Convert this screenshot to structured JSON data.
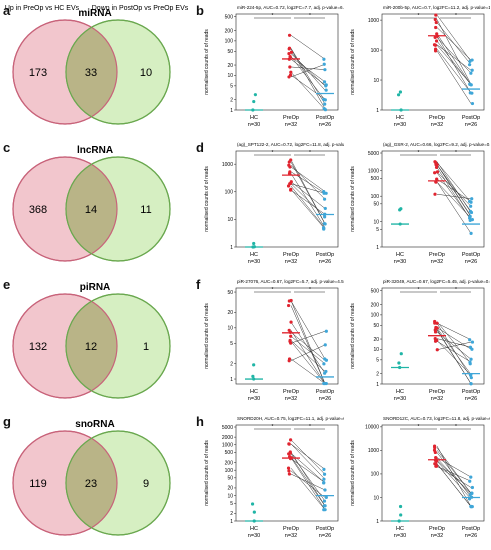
{
  "venn_left_label": "Up in PreOp vs HC EVs",
  "venn_right_label": "Down in PostOp vs PreOp EVs",
  "colors": {
    "pink": "#f2c6cd",
    "pink_stroke": "#c8637a",
    "green": "#d6efc2",
    "green_stroke": "#6aa84f",
    "overlap": "#b9b487",
    "hc": "#20b5a6",
    "preop": "#e0242f",
    "postop": "#3fa6d8",
    "line": "#333333"
  },
  "groups": {
    "hc": "HC",
    "preop": "PreOp",
    "postop": "PostOp"
  },
  "ylabel": "normalised counts of of reads",
  "rows": [
    {
      "venn_letter": "a",
      "plot_letter": "b",
      "type": "miRNA",
      "left": "173",
      "center": "33",
      "right": "10",
      "plots": [
        {
          "title": "miR-224-5p, AUC=0.72, log2FC=7.7, adj. p-value=6.4×10⁻³",
          "n": [
            "n=30",
            "n=32",
            "n=26"
          ],
          "ticks": [
            "1",
            "2",
            "5",
            "10",
            "20",
            "50",
            "100",
            "200",
            "500"
          ],
          "ylim": [
            1,
            600
          ],
          "median": [
            1,
            30,
            3
          ]
        },
        {
          "title": "miR-200b-5p, AUC=0.7, log2FC=11.2, adj. p-value=1.2×10⁻³",
          "n": [
            "n=30",
            "n=32",
            "n=26"
          ],
          "ticks": [
            "1",
            "10",
            "100",
            "1000"
          ],
          "ylim": [
            1,
            1600
          ],
          "median": [
            1,
            300,
            5
          ]
        }
      ]
    },
    {
      "venn_letter": "c",
      "plot_letter": "d",
      "type": "lncRNA",
      "left": "368",
      "center": "14",
      "right": "11",
      "plots": [
        {
          "title": "(ag)_SPT122-2, AUC=0.72, log2FC=11.8, adj. p-value=1.5×10⁻³",
          "n": [
            "n=30",
            "n=32",
            "n=26"
          ],
          "ticks": [
            "1",
            "10",
            "100",
            "1000"
          ],
          "ylim": [
            1,
            3000
          ],
          "median": [
            1,
            400,
            15
          ]
        },
        {
          "title": "(ag)_GSR-2, AUC=0.66, log2FC=9.2, adj. p-value=0.00602",
          "n": [
            "n=30",
            "n=32",
            "n=26"
          ],
          "ticks": [
            "1",
            "5",
            "10",
            "50",
            "100",
            "500",
            "1000",
            "5000"
          ],
          "ylim": [
            1,
            6000
          ],
          "median": [
            8,
            400,
            8
          ]
        }
      ]
    },
    {
      "venn_letter": "e",
      "plot_letter": "f",
      "type": "piRNA",
      "left": "132",
      "center": "12",
      "right": "1",
      "plots": [
        {
          "title": "piR-27076, AUC=0.67, log2FC=5.7, adj. p-value=4.5×10⁻³",
          "n": [
            "n=30",
            "n=32",
            "n=26"
          ],
          "ticks": [
            "1",
            "2",
            "5",
            "10",
            "20",
            "50"
          ],
          "ylim": [
            0.8,
            60
          ],
          "median": [
            1,
            8,
            1.1
          ]
        },
        {
          "title": "piR-32049, AUC=0.67, log2FC=5.45, adj. p-value=0.011",
          "n": [
            "n=30",
            "n=32",
            "n=26"
          ],
          "ticks": [
            "1",
            "2",
            "5",
            "10",
            "20",
            "50",
            "100",
            "200",
            "500"
          ],
          "ylim": [
            1,
            600
          ],
          "median": [
            3,
            25,
            2
          ]
        }
      ]
    },
    {
      "venn_letter": "g",
      "plot_letter": "h",
      "type": "snoRNA",
      "left": "119",
      "center": "23",
      "right": "9",
      "plots": [
        {
          "title": "SNORD20H, AUC=0.75, log2FC=11.1, adj. p-value=6.3×10⁻³",
          "n": [
            "n=30",
            "n=32",
            "n=26"
          ],
          "ticks": [
            "1",
            "2",
            "5",
            "10",
            "20",
            "50",
            "100",
            "200",
            "500",
            "1000",
            "2000",
            "5000"
          ],
          "ylim": [
            1,
            6000
          ],
          "median": [
            1,
            300,
            10
          ]
        },
        {
          "title": "SNORD12C, AUC=0.73, log2FC=11.8, adj. p-value=6.3×10⁻³",
          "n": [
            "n=30",
            "n=32",
            "n=26"
          ],
          "ticks": [
            "1",
            "10",
            "100",
            "1000",
            "10000"
          ],
          "ylim": [
            1,
            12000
          ],
          "median": [
            1,
            400,
            10
          ]
        }
      ]
    }
  ]
}
